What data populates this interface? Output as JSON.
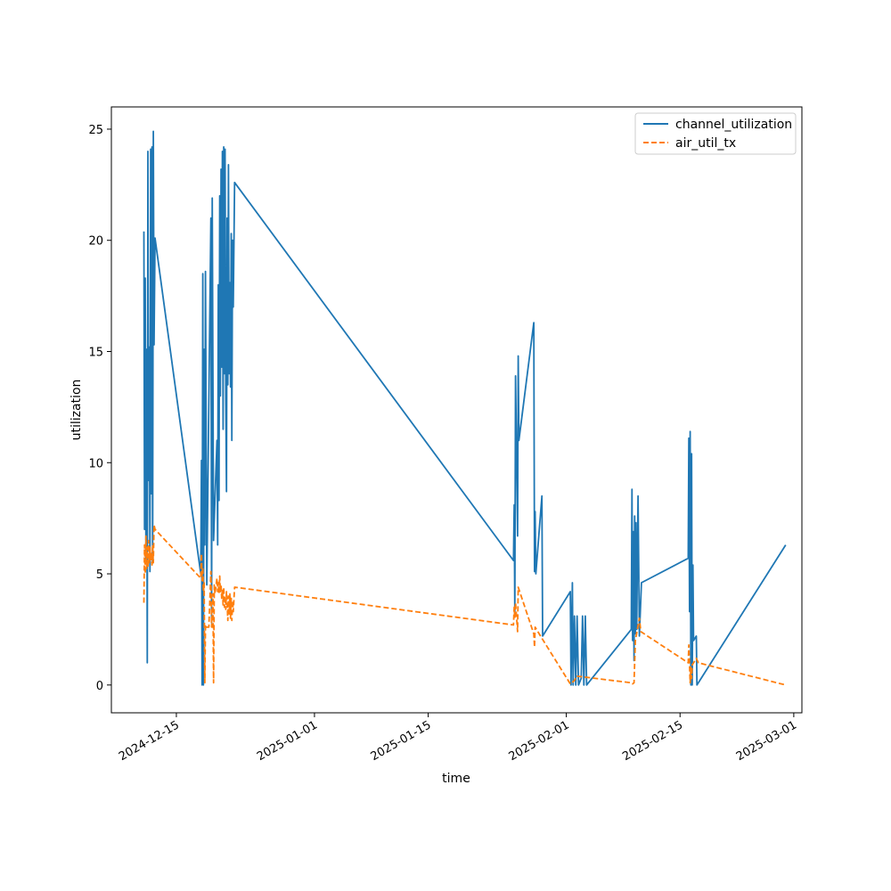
{
  "chart_data": {
    "type": "line",
    "xlabel": "time",
    "ylabel": "utilization",
    "x_range": [
      "2024-12-07",
      "2025-03-02"
    ],
    "ylim": [
      -1.25,
      26.0
    ],
    "grid": false,
    "legend_position": "top-right",
    "x_ticks": [
      "2024-12-15",
      "2025-01-01",
      "2025-01-15",
      "2025-02-01",
      "2025-02-15",
      "2025-03-01"
    ],
    "y_ticks": [
      0,
      5,
      10,
      15,
      20,
      25
    ],
    "series": [
      {
        "name": "channel_utilization",
        "color": "#1f77b4",
        "style": "solid",
        "points": [
          [
            "2024-12-11T00:00",
            20.4
          ],
          [
            "2024-12-11T02:00",
            7.0
          ],
          [
            "2024-12-11T04:00",
            18.3
          ],
          [
            "2024-12-11T06:00",
            5.5
          ],
          [
            "2024-12-11T08:00",
            15.1
          ],
          [
            "2024-12-11T10:00",
            1.0
          ],
          [
            "2024-12-11T12:00",
            24.0
          ],
          [
            "2024-12-11T14:00",
            9.2
          ],
          [
            "2024-12-11T16:00",
            15.2
          ],
          [
            "2024-12-11T18:00",
            5.1
          ],
          [
            "2024-12-11T20:00",
            24.1
          ],
          [
            "2024-12-11T22:00",
            8.6
          ],
          [
            "2024-12-12T00:00",
            24.2
          ],
          [
            "2024-12-12T02:00",
            5.5
          ],
          [
            "2024-12-12T04:00",
            24.9
          ],
          [
            "2024-12-12T06:00",
            15.3
          ],
          [
            "2024-12-12T09:00",
            20.1
          ],
          [
            "2024-12-18T00:00",
            5.0
          ],
          [
            "2024-12-18T02:00",
            10.1
          ],
          [
            "2024-12-18T04:00",
            0.0
          ],
          [
            "2024-12-18T06:00",
            18.5
          ],
          [
            "2024-12-18T08:00",
            0.0
          ],
          [
            "2024-12-18T10:00",
            15.1
          ],
          [
            "2024-12-18T12:00",
            6.3
          ],
          [
            "2024-12-18T14:00",
            18.6
          ],
          [
            "2024-12-18T18:00",
            4.5
          ],
          [
            "2024-12-19T06:00",
            21.0
          ],
          [
            "2024-12-19T08:00",
            2.8
          ],
          [
            "2024-12-19T10:00",
            21.9
          ],
          [
            "2024-12-19T14:00",
            6.5
          ],
          [
            "2024-12-20T00:00",
            11.0
          ],
          [
            "2024-12-20T02:00",
            6.3
          ],
          [
            "2024-12-20T04:00",
            18.0
          ],
          [
            "2024-12-20T06:00",
            8.3
          ],
          [
            "2024-12-20T08:00",
            22.0
          ],
          [
            "2024-12-20T10:00",
            13.0
          ],
          [
            "2024-12-20T12:00",
            23.2
          ],
          [
            "2024-12-20T14:00",
            14.3
          ],
          [
            "2024-12-20T16:00",
            24.0
          ],
          [
            "2024-12-20T18:00",
            11.5
          ],
          [
            "2024-12-20T20:00",
            24.2
          ],
          [
            "2024-12-20T22:00",
            14.0
          ],
          [
            "2024-12-21T00:00",
            24.1
          ],
          [
            "2024-12-21T02:00",
            12.9
          ],
          [
            "2024-12-21T04:00",
            8.7
          ],
          [
            "2024-12-21T06:00",
            21.0
          ],
          [
            "2024-12-21T08:00",
            13.5
          ],
          [
            "2024-12-21T10:00",
            23.4
          ],
          [
            "2024-12-21T12:00",
            14.0
          ],
          [
            "2024-12-21T14:00",
            18.1
          ],
          [
            "2024-12-21T16:00",
            13.4
          ],
          [
            "2024-12-21T18:00",
            20.3
          ],
          [
            "2024-12-21T20:00",
            11.0
          ],
          [
            "2024-12-21T22:00",
            20.0
          ],
          [
            "2024-12-22T00:00",
            17.0
          ],
          [
            "2024-12-22T04:00",
            22.6
          ],
          [
            "2025-01-25T12:00",
            5.6
          ],
          [
            "2025-01-25T14:00",
            8.1
          ],
          [
            "2025-01-25T16:00",
            3.3
          ],
          [
            "2025-01-25T18:00",
            13.9
          ],
          [
            "2025-01-26T00:00",
            6.7
          ],
          [
            "2025-01-26T02:00",
            14.8
          ],
          [
            "2025-01-26T04:00",
            11.0
          ],
          [
            "2025-01-28T00:00",
            16.3
          ],
          [
            "2025-01-28T02:00",
            5.1
          ],
          [
            "2025-01-28T04:00",
            7.8
          ],
          [
            "2025-01-28T06:00",
            5.0
          ],
          [
            "2025-01-29T00:00",
            8.5
          ],
          [
            "2025-01-29T02:00",
            2.2
          ],
          [
            "2025-02-01T12:00",
            4.2
          ],
          [
            "2025-02-01T14:00",
            0.0
          ],
          [
            "2025-02-01T18:00",
            4.6
          ],
          [
            "2025-02-01T20:00",
            0.0
          ],
          [
            "2025-02-02T00:00",
            3.1
          ],
          [
            "2025-02-02T04:00",
            0.0
          ],
          [
            "2025-02-02T08:00",
            3.1
          ],
          [
            "2025-02-02T12:00",
            0.0
          ],
          [
            "2025-02-02T20:00",
            0.3
          ],
          [
            "2025-02-03T00:00",
            3.1
          ],
          [
            "2025-02-03T04:00",
            0.0
          ],
          [
            "2025-02-03T08:00",
            3.1
          ],
          [
            "2025-02-03T12:00",
            0.0
          ],
          [
            "2025-02-09T00:00",
            2.5
          ],
          [
            "2025-02-09T02:00",
            8.8
          ],
          [
            "2025-02-09T04:00",
            2.0
          ],
          [
            "2025-02-09T06:00",
            6.9
          ],
          [
            "2025-02-09T08:00",
            1.1
          ],
          [
            "2025-02-09T10:00",
            7.6
          ],
          [
            "2025-02-09T12:00",
            2.3
          ],
          [
            "2025-02-09T14:00",
            7.3
          ],
          [
            "2025-02-09T16:00",
            2.5
          ],
          [
            "2025-02-09T20:00",
            8.5
          ],
          [
            "2025-02-10T00:00",
            2.2
          ],
          [
            "2025-02-10T06:00",
            4.6
          ],
          [
            "2025-02-16T00:00",
            5.7
          ],
          [
            "2025-02-16T02:00",
            11.1
          ],
          [
            "2025-02-16T04:00",
            3.3
          ],
          [
            "2025-02-16T06:00",
            11.4
          ],
          [
            "2025-02-16T08:00",
            0.0
          ],
          [
            "2025-02-16T10:00",
            10.4
          ],
          [
            "2025-02-16T12:00",
            0.0
          ],
          [
            "2025-02-16T14:00",
            5.4
          ],
          [
            "2025-02-16T16:00",
            2.0
          ],
          [
            "2025-02-17T00:00",
            2.2
          ],
          [
            "2025-02-17T02:00",
            0.0
          ],
          [
            "2025-02-28T00:00",
            6.3
          ]
        ]
      },
      {
        "name": "air_util_tx",
        "color": "#ff7f0e",
        "style": "dashed",
        "points": [
          [
            "2024-12-11T00:00",
            3.7
          ],
          [
            "2024-12-11T02:00",
            6.3
          ],
          [
            "2024-12-11T04:00",
            5.0
          ],
          [
            "2024-12-11T06:00",
            6.7
          ],
          [
            "2024-12-11T08:00",
            5.2
          ],
          [
            "2024-12-11T10:00",
            6.2
          ],
          [
            "2024-12-11T12:00",
            5.3
          ],
          [
            "2024-12-11T14:00",
            6.5
          ],
          [
            "2024-12-11T16:00",
            5.5
          ],
          [
            "2024-12-11T18:00",
            6.2
          ],
          [
            "2024-12-11T20:00",
            5.6
          ],
          [
            "2024-12-11T22:00",
            6.0
          ],
          [
            "2024-12-12T00:00",
            5.4
          ],
          [
            "2024-12-12T02:00",
            6.3
          ],
          [
            "2024-12-12T04:00",
            5.5
          ],
          [
            "2024-12-12T06:00",
            7.2
          ],
          [
            "2024-12-12T09:00",
            7.0
          ],
          [
            "2024-12-18T00:00",
            4.8
          ],
          [
            "2024-12-18T02:00",
            5.9
          ],
          [
            "2024-12-18T04:00",
            4.7
          ],
          [
            "2024-12-18T06:00",
            5.3
          ],
          [
            "2024-12-18T08:00",
            4.2
          ],
          [
            "2024-12-18T10:00",
            4.6
          ],
          [
            "2024-12-18T12:00",
            0.1
          ],
          [
            "2024-12-18T14:00",
            2.7
          ],
          [
            "2024-12-18T16:00",
            2.6
          ],
          [
            "2024-12-19T00:00",
            2.6
          ],
          [
            "2024-12-19T06:00",
            5.1
          ],
          [
            "2024-12-19T08:00",
            2.6
          ],
          [
            "2024-12-19T12:00",
            4.1
          ],
          [
            "2024-12-19T14:00",
            0.1
          ],
          [
            "2024-12-19T16:00",
            4.5
          ],
          [
            "2024-12-19T18:00",
            4.1
          ],
          [
            "2024-12-20T00:00",
            4.8
          ],
          [
            "2024-12-20T02:00",
            4.2
          ],
          [
            "2024-12-20T04:00",
            4.6
          ],
          [
            "2024-12-20T06:00",
            4.1
          ],
          [
            "2024-12-20T08:00",
            4.9
          ],
          [
            "2024-12-20T10:00",
            4.2
          ],
          [
            "2024-12-20T12:00",
            4.5
          ],
          [
            "2024-12-20T14:00",
            3.9
          ],
          [
            "2024-12-20T16:00",
            4.3
          ],
          [
            "2024-12-20T18:00",
            3.6
          ],
          [
            "2024-12-20T20:00",
            4.4
          ],
          [
            "2024-12-20T22:00",
            3.5
          ],
          [
            "2024-12-21T00:00",
            4.0
          ],
          [
            "2024-12-21T02:00",
            3.4
          ],
          [
            "2024-12-21T04:00",
            4.2
          ],
          [
            "2024-12-21T06:00",
            3.7
          ],
          [
            "2024-12-21T08:00",
            2.9
          ],
          [
            "2024-12-21T10:00",
            4.0
          ],
          [
            "2024-12-21T12:00",
            3.2
          ],
          [
            "2024-12-21T14:00",
            4.1
          ],
          [
            "2024-12-21T16:00",
            3.0
          ],
          [
            "2024-12-21T18:00",
            3.9
          ],
          [
            "2024-12-21T20:00",
            2.9
          ],
          [
            "2024-12-21T22:00",
            3.8
          ],
          [
            "2024-12-22T00:00",
            3.3
          ],
          [
            "2024-12-22T04:00",
            4.4
          ],
          [
            "2025-01-25T12:00",
            2.7
          ],
          [
            "2025-01-25T14:00",
            3.5
          ],
          [
            "2025-01-25T16:00",
            3.0
          ],
          [
            "2025-01-25T18:00",
            3.7
          ],
          [
            "2025-01-26T00:00",
            2.4
          ],
          [
            "2025-01-26T02:00",
            4.4
          ],
          [
            "2025-01-28T00:00",
            2.3
          ],
          [
            "2025-01-28T02:00",
            1.7
          ],
          [
            "2025-01-28T04:00",
            2.6
          ],
          [
            "2025-01-29T00:00",
            2.1
          ],
          [
            "2025-02-01T12:00",
            0.05
          ],
          [
            "2025-02-01T16:00",
            0.1
          ],
          [
            "2025-02-02T00:00",
            0.2
          ],
          [
            "2025-02-02T06:00",
            0.4
          ],
          [
            "2025-02-09T00:00",
            0.1
          ],
          [
            "2025-02-09T04:00",
            0.05
          ],
          [
            "2025-02-09T08:00",
            0.1
          ],
          [
            "2025-02-09T12:00",
            2.0
          ],
          [
            "2025-02-10T00:00",
            3.0
          ],
          [
            "2025-02-10T04:00",
            2.4
          ],
          [
            "2025-02-16T00:00",
            1.0
          ],
          [
            "2025-02-16T02:00",
            1.8
          ],
          [
            "2025-02-16T04:00",
            0.9
          ],
          [
            "2025-02-16T06:00",
            0.1
          ],
          [
            "2025-02-16T08:00",
            0.8
          ],
          [
            "2025-02-16T10:00",
            0.3
          ],
          [
            "2025-02-16T12:00",
            0.9
          ],
          [
            "2025-02-17T00:00",
            1.2
          ],
          [
            "2025-02-17T06:00",
            1.0
          ],
          [
            "2025-02-28T00:00",
            0.0
          ]
        ]
      }
    ]
  }
}
